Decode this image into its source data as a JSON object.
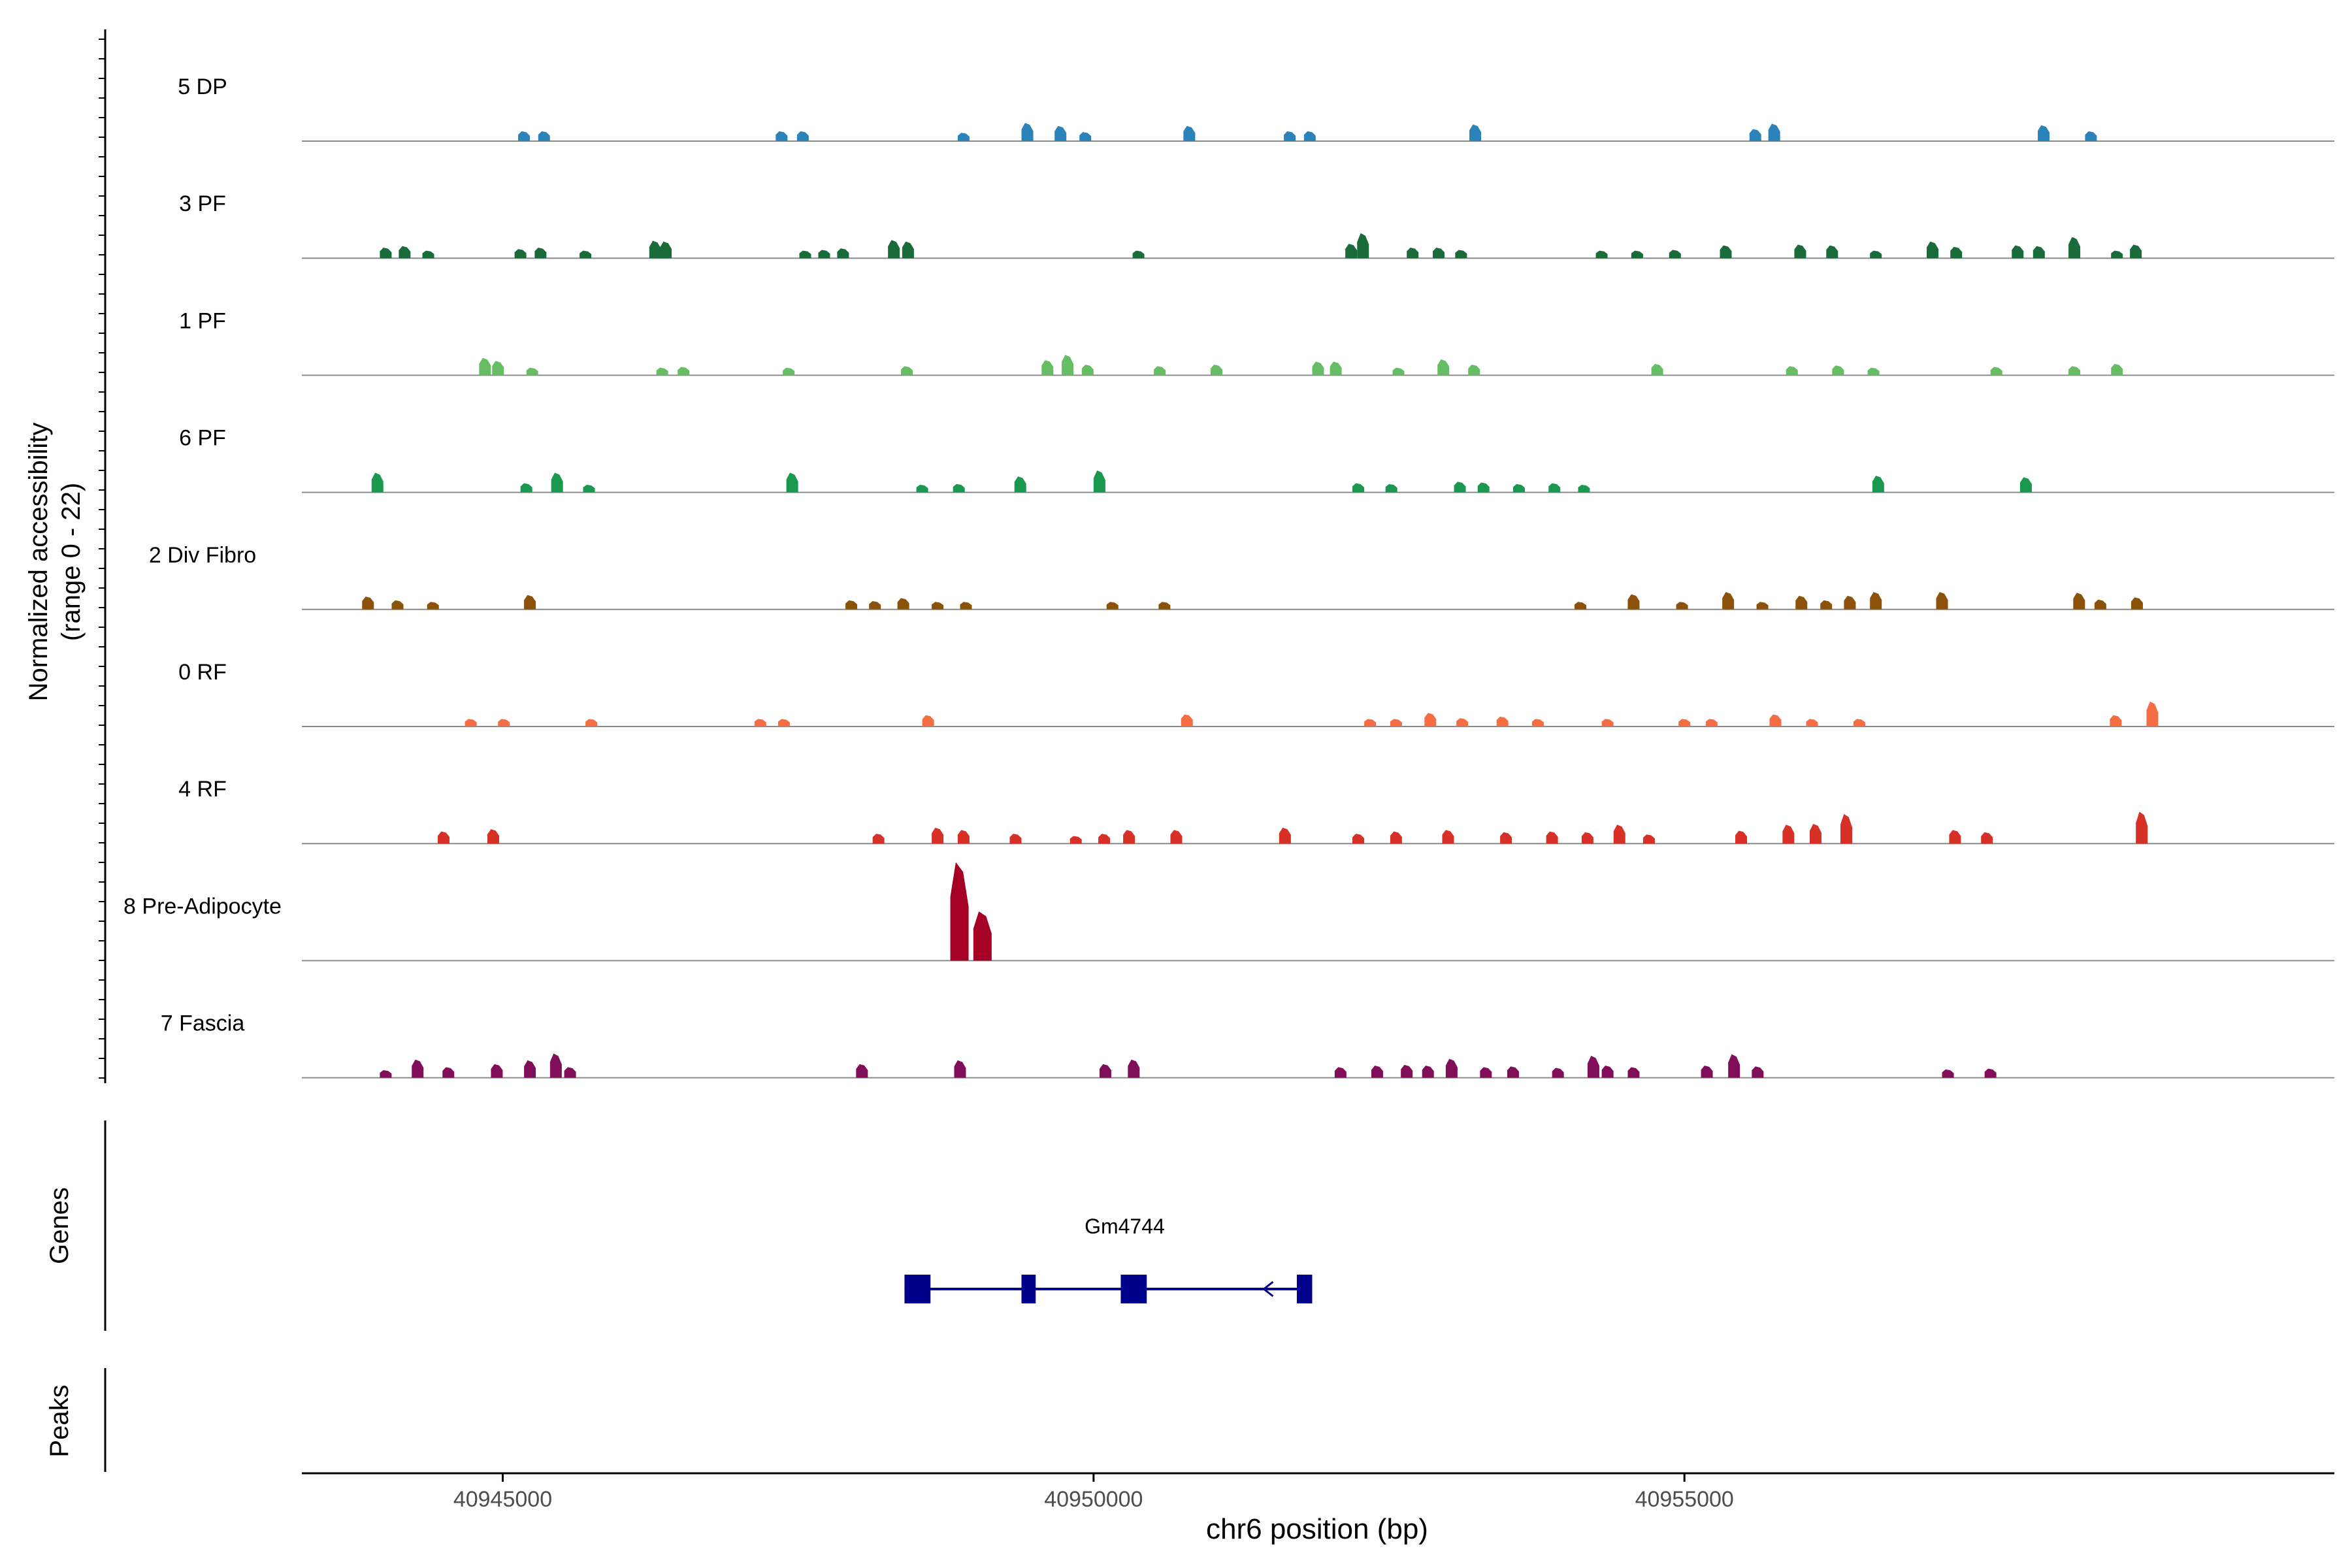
{
  "chart_data": {
    "type": "area",
    "subtype": "coverage-track",
    "ylabel_line1": "Normalized accessibility",
    "ylabel_line2": "(range 0 - 22)",
    "ylim": [
      0,
      22
    ],
    "xlabel": "chr6 position (bp)",
    "xlim": [
      40943300,
      40960500
    ],
    "xticks": [
      40945000,
      40950000,
      40955000
    ],
    "xtick_labels": [
      "40945000",
      "40950000",
      "40955000"
    ],
    "tracks": [
      {
        "name": "5 DP",
        "color": "#2b83ba",
        "peaks": [
          [
            40945180,
            1.3
          ],
          [
            40945350,
            1.3
          ],
          [
            40947360,
            1.3
          ],
          [
            40947540,
            1.3
          ],
          [
            40948900,
            1.1
          ],
          [
            40949440,
            2.4
          ],
          [
            40949720,
            2.0
          ],
          [
            40949930,
            1.2
          ],
          [
            40950810,
            2.0
          ],
          [
            40951660,
            1.3
          ],
          [
            40951830,
            1.3
          ],
          [
            40953230,
            2.2
          ],
          [
            40955600,
            1.6
          ],
          [
            40955760,
            2.3
          ],
          [
            40958040,
            2.1
          ],
          [
            40958440,
            1.3
          ]
        ]
      },
      {
        "name": "3 PF",
        "color": "#1a6b3a",
        "peaks": [
          [
            40944010,
            1.4
          ],
          [
            40944170,
            1.6
          ],
          [
            40944370,
            1.0
          ],
          [
            40945150,
            1.2
          ],
          [
            40945320,
            1.4
          ],
          [
            40945700,
            1.0
          ],
          [
            40946290,
            2.3
          ],
          [
            40946380,
            2.2
          ],
          [
            40947560,
            1.0
          ],
          [
            40947720,
            1.1
          ],
          [
            40947880,
            1.3
          ],
          [
            40948310,
            2.4
          ],
          [
            40948430,
            2.2
          ],
          [
            40950380,
            1.0
          ],
          [
            40952180,
            1.9
          ],
          [
            40952280,
            3.3
          ],
          [
            40952700,
            1.4
          ],
          [
            40952920,
            1.4
          ],
          [
            40953110,
            1.1
          ],
          [
            40954300,
            1.0
          ],
          [
            40954600,
            1.0
          ],
          [
            40954920,
            1.1
          ],
          [
            40955350,
            1.7
          ],
          [
            40955980,
            1.8
          ],
          [
            40956250,
            1.7
          ],
          [
            40956620,
            1.0
          ],
          [
            40957100,
            2.2
          ],
          [
            40957300,
            1.5
          ],
          [
            40957820,
            1.7
          ],
          [
            40958000,
            1.6
          ],
          [
            40958300,
            2.8
          ],
          [
            40958660,
            1.0
          ],
          [
            40958820,
            1.8
          ]
        ]
      },
      {
        "name": "1 PF",
        "color": "#66bd63",
        "peaks": [
          [
            40944850,
            2.3
          ],
          [
            40944960,
            1.9
          ],
          [
            40945250,
            1.0
          ],
          [
            40946350,
            1.0
          ],
          [
            40946530,
            1.1
          ],
          [
            40947420,
            1.0
          ],
          [
            40948420,
            1.2
          ],
          [
            40949610,
            2.0
          ],
          [
            40949780,
            2.7
          ],
          [
            40949950,
            1.4
          ],
          [
            40950560,
            1.2
          ],
          [
            40951040,
            1.4
          ],
          [
            40951900,
            1.8
          ],
          [
            40952050,
            1.8
          ],
          [
            40952580,
            1.0
          ],
          [
            40952960,
            2.1
          ],
          [
            40953220,
            1.4
          ],
          [
            40954770,
            1.5
          ],
          [
            40955910,
            1.2
          ],
          [
            40956300,
            1.3
          ],
          [
            40956600,
            1.0
          ],
          [
            40957640,
            1.1
          ],
          [
            40958300,
            1.2
          ],
          [
            40958660,
            1.5
          ]
        ]
      },
      {
        "name": "6 PF",
        "color": "#1a9850",
        "peaks": [
          [
            40943940,
            2.6
          ],
          [
            40945200,
            1.2
          ],
          [
            40945460,
            2.6
          ],
          [
            40945730,
            1.0
          ],
          [
            40947450,
            2.6
          ],
          [
            40948550,
            1.0
          ],
          [
            40948860,
            1.1
          ],
          [
            40949380,
            2.1
          ],
          [
            40950050,
            2.9
          ],
          [
            40952240,
            1.2
          ],
          [
            40952520,
            1.1
          ],
          [
            40953100,
            1.4
          ],
          [
            40953300,
            1.3
          ],
          [
            40953600,
            1.1
          ],
          [
            40953900,
            1.2
          ],
          [
            40954150,
            1.0
          ],
          [
            40956640,
            2.2
          ],
          [
            40957890,
            2.0
          ]
        ]
      },
      {
        "name": "2 Div Fibro",
        "color": "#8c510a",
        "peaks": [
          [
            40943860,
            1.7
          ],
          [
            40944110,
            1.2
          ],
          [
            40944410,
            1.0
          ],
          [
            40945230,
            1.9
          ],
          [
            40947950,
            1.2
          ],
          [
            40948150,
            1.1
          ],
          [
            40948390,
            1.5
          ],
          [
            40948680,
            1.0
          ],
          [
            40948920,
            1.0
          ],
          [
            40950160,
            1.0
          ],
          [
            40950600,
            1.0
          ],
          [
            40954120,
            1.0
          ],
          [
            40954570,
            2.0
          ],
          [
            40954980,
            1.0
          ],
          [
            40955370,
            2.3
          ],
          [
            40955660,
            1.0
          ],
          [
            40955990,
            1.8
          ],
          [
            40956200,
            1.2
          ],
          [
            40956400,
            1.8
          ],
          [
            40956620,
            2.3
          ],
          [
            40957180,
            2.3
          ],
          [
            40958340,
            2.2
          ],
          [
            40958520,
            1.3
          ],
          [
            40958830,
            1.6
          ]
        ]
      },
      {
        "name": "0 RF",
        "color": "#f46d43",
        "peaks": [
          [
            40944730,
            1.0
          ],
          [
            40945010,
            1.0
          ],
          [
            40945750,
            1.0
          ],
          [
            40947180,
            1.0
          ],
          [
            40947380,
            1.0
          ],
          [
            40948600,
            1.5
          ],
          [
            40950790,
            1.6
          ],
          [
            40952340,
            1.0
          ],
          [
            40952560,
            1.0
          ],
          [
            40952850,
            1.8
          ],
          [
            40953120,
            1.1
          ],
          [
            40953460,
            1.3
          ],
          [
            40953760,
            1.0
          ],
          [
            40954350,
            1.0
          ],
          [
            40955000,
            1.0
          ],
          [
            40955230,
            1.0
          ],
          [
            40955770,
            1.6
          ],
          [
            40956080,
            1.0
          ],
          [
            40956480,
            1.0
          ],
          [
            40958650,
            1.5
          ],
          [
            40958960,
            3.3
          ]
        ]
      },
      {
        "name": "4 RF",
        "color": "#d73027",
        "peaks": [
          [
            40944500,
            1.6
          ],
          [
            40944920,
            1.9
          ],
          [
            40948180,
            1.3
          ],
          [
            40948680,
            2.1
          ],
          [
            40948900,
            1.8
          ],
          [
            40949340,
            1.3
          ],
          [
            40949850,
            1.0
          ],
          [
            40950090,
            1.3
          ],
          [
            40950300,
            1.8
          ],
          [
            40950700,
            1.8
          ],
          [
            40951620,
            2.1
          ],
          [
            40952240,
            1.3
          ],
          [
            40952560,
            1.6
          ],
          [
            40953000,
            1.8
          ],
          [
            40953490,
            1.5
          ],
          [
            40953880,
            1.6
          ],
          [
            40954180,
            1.5
          ],
          [
            40954450,
            2.5
          ],
          [
            40954700,
            1.2
          ],
          [
            40955480,
            1.7
          ],
          [
            40955880,
            2.5
          ],
          [
            40956110,
            2.6
          ],
          [
            40956370,
            3.9
          ],
          [
            40957290,
            1.8
          ],
          [
            40957560,
            1.5
          ],
          [
            40958870,
            4.2
          ]
        ]
      },
      {
        "name": "8 Pre-Adipocyte",
        "color": "#a50026",
        "peaks": [
          [
            40948865,
            13.0
          ],
          [
            40949060,
            6.5
          ]
        ]
      },
      {
        "name": "7 Fascia",
        "color": "#800e58",
        "peaks": [
          [
            40944010,
            1.0
          ],
          [
            40944280,
            2.4
          ],
          [
            40944540,
            1.4
          ],
          [
            40944950,
            1.8
          ],
          [
            40945230,
            2.3
          ],
          [
            40945450,
            3.2
          ],
          [
            40945570,
            1.4
          ],
          [
            40948040,
            1.8
          ],
          [
            40948870,
            2.3
          ],
          [
            40950100,
            1.8
          ],
          [
            40950340,
            2.4
          ],
          [
            40952090,
            1.4
          ],
          [
            40952400,
            1.6
          ],
          [
            40952650,
            1.7
          ],
          [
            40952830,
            1.6
          ],
          [
            40953030,
            2.5
          ],
          [
            40953320,
            1.4
          ],
          [
            40953550,
            1.5
          ],
          [
            40953930,
            1.3
          ],
          [
            40954230,
            2.9
          ],
          [
            40954350,
            1.6
          ],
          [
            40954570,
            1.4
          ],
          [
            40955190,
            1.6
          ],
          [
            40955420,
            3.1
          ],
          [
            40955620,
            1.5
          ],
          [
            40957230,
            1.1
          ],
          [
            40957590,
            1.2
          ]
        ]
      }
    ],
    "genes_track": {
      "label": "Genes",
      "gene_name": "Gm4744",
      "color": "#00008b",
      "strand": "-",
      "span": [
        40948400,
        40951850
      ],
      "exons": [
        [
          40948400,
          40948620
        ],
        [
          40949390,
          40949510
        ],
        [
          40950230,
          40950450
        ],
        [
          40951720,
          40951850
        ]
      ]
    },
    "peaks_track": {
      "label": "Peaks"
    }
  }
}
